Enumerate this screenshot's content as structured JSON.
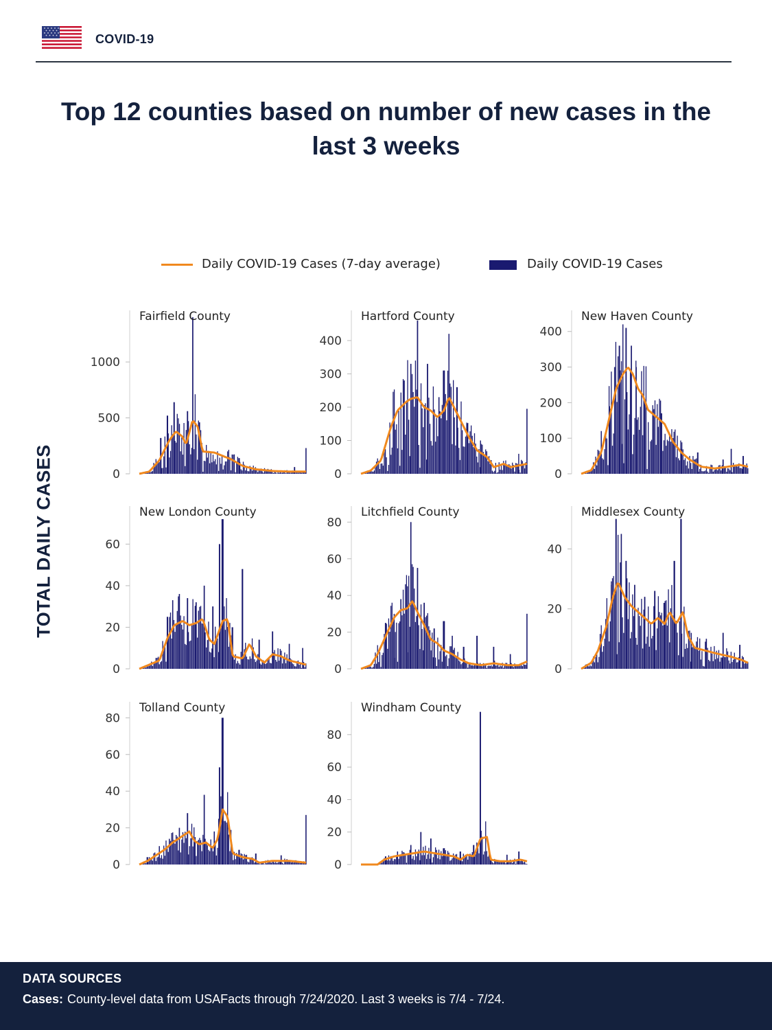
{
  "header": {
    "brand": "COVID-19",
    "title": "Top 12 counties based on number of new cases in the last 3 weeks"
  },
  "legend": {
    "line_label": "Daily COVID-19 Cases (7-day average)",
    "bar_label": "Daily COVID-19 Cases"
  },
  "y_axis_title": "TOTAL DAILY CASES",
  "colors": {
    "bar": "#1a1a70",
    "line": "#f0891e",
    "header_text": "#14213d",
    "footer_bg": "#14213d"
  },
  "footer": {
    "title": "DATA SOURCES",
    "label": "Cases:",
    "text": "County-level data from USAFacts through 7/24/2020. Last 3 weeks is 7/4 - 7/24."
  },
  "chart_data": [
    {
      "type": "bar",
      "title": "Fairfield County",
      "ymax": 1400,
      "yticks": [
        0,
        500,
        1000
      ],
      "peaks": [
        {
          "t": 0.13,
          "v": 320
        },
        {
          "t": 0.17,
          "v": 520
        },
        {
          "t": 0.21,
          "v": 640
        },
        {
          "t": 0.29,
          "v": 560
        },
        {
          "t": 0.32,
          "v": 1400
        },
        {
          "t": 0.36,
          "v": 460
        },
        {
          "t": 0.6,
          "v": 140
        },
        {
          "t": 0.93,
          "v": 60
        },
        {
          "t": 1.0,
          "v": 230
        }
      ],
      "avg_curve": [
        [
          0,
          0
        ],
        [
          0.06,
          20
        ],
        [
          0.12,
          120
        ],
        [
          0.18,
          300
        ],
        [
          0.22,
          380
        ],
        [
          0.26,
          330
        ],
        [
          0.28,
          260
        ],
        [
          0.32,
          480
        ],
        [
          0.35,
          420
        ],
        [
          0.38,
          200
        ],
        [
          0.45,
          190
        ],
        [
          0.55,
          130
        ],
        [
          0.62,
          70
        ],
        [
          0.7,
          40
        ],
        [
          0.8,
          25
        ],
        [
          0.9,
          20
        ],
        [
          1.0,
          20
        ]
      ]
    },
    {
      "type": "bar",
      "title": "Hartford County",
      "ymax": 470,
      "yticks": [
        0,
        100,
        200,
        300,
        400
      ],
      "peaks": [
        {
          "t": 0.2,
          "v": 170
        },
        {
          "t": 0.26,
          "v": 280
        },
        {
          "t": 0.3,
          "v": 330
        },
        {
          "t": 0.34,
          "v": 460
        },
        {
          "t": 0.4,
          "v": 330
        },
        {
          "t": 0.47,
          "v": 230
        },
        {
          "t": 0.5,
          "v": 310
        },
        {
          "t": 0.53,
          "v": 420
        },
        {
          "t": 0.58,
          "v": 260
        },
        {
          "t": 0.64,
          "v": 150
        },
        {
          "t": 0.72,
          "v": 100
        },
        {
          "t": 0.95,
          "v": 60
        },
        {
          "t": 1.0,
          "v": 195
        }
      ],
      "avg_curve": [
        [
          0,
          0
        ],
        [
          0.06,
          10
        ],
        [
          0.12,
          40
        ],
        [
          0.18,
          140
        ],
        [
          0.22,
          190
        ],
        [
          0.27,
          215
        ],
        [
          0.3,
          225
        ],
        [
          0.34,
          230
        ],
        [
          0.38,
          200
        ],
        [
          0.42,
          190
        ],
        [
          0.46,
          170
        ],
        [
          0.5,
          190
        ],
        [
          0.53,
          230
        ],
        [
          0.56,
          200
        ],
        [
          0.6,
          160
        ],
        [
          0.65,
          110
        ],
        [
          0.7,
          70
        ],
        [
          0.76,
          50
        ],
        [
          0.8,
          20
        ],
        [
          0.86,
          30
        ],
        [
          0.9,
          20
        ],
        [
          0.95,
          25
        ],
        [
          1.0,
          30
        ]
      ]
    },
    {
      "type": "bar",
      "title": "New Haven County",
      "ymax": 440,
      "yticks": [
        0,
        100,
        200,
        300,
        400
      ],
      "peaks": [
        {
          "t": 0.12,
          "v": 120
        },
        {
          "t": 0.17,
          "v": 190
        },
        {
          "t": 0.2,
          "v": 300
        },
        {
          "t": 0.23,
          "v": 360
        },
        {
          "t": 0.25,
          "v": 420
        },
        {
          "t": 0.27,
          "v": 410
        },
        {
          "t": 0.3,
          "v": 360
        },
        {
          "t": 0.33,
          "v": 300
        },
        {
          "t": 0.38,
          "v": 210
        },
        {
          "t": 0.43,
          "v": 180
        },
        {
          "t": 0.48,
          "v": 170
        },
        {
          "t": 0.55,
          "v": 100
        },
        {
          "t": 0.6,
          "v": 70
        },
        {
          "t": 0.7,
          "v": 60
        },
        {
          "t": 0.85,
          "v": 40
        },
        {
          "t": 0.9,
          "v": 70
        },
        {
          "t": 0.97,
          "v": 50
        }
      ],
      "avg_curve": [
        [
          0,
          0
        ],
        [
          0.06,
          10
        ],
        [
          0.12,
          60
        ],
        [
          0.17,
          160
        ],
        [
          0.21,
          240
        ],
        [
          0.25,
          280
        ],
        [
          0.28,
          300
        ],
        [
          0.31,
          280
        ],
        [
          0.34,
          240
        ],
        [
          0.37,
          220
        ],
        [
          0.4,
          180
        ],
        [
          0.45,
          160
        ],
        [
          0.5,
          140
        ],
        [
          0.55,
          90
        ],
        [
          0.6,
          60
        ],
        [
          0.65,
          40
        ],
        [
          0.72,
          20
        ],
        [
          0.8,
          15
        ],
        [
          0.88,
          20
        ],
        [
          0.95,
          25
        ],
        [
          1.0,
          20
        ]
      ]
    },
    {
      "type": "bar",
      "title": "New London County",
      "ymax": 75,
      "yticks": [
        0,
        20,
        40,
        60
      ],
      "peaks": [
        {
          "t": 0.17,
          "v": 25
        },
        {
          "t": 0.2,
          "v": 33
        },
        {
          "t": 0.24,
          "v": 36
        },
        {
          "t": 0.29,
          "v": 34
        },
        {
          "t": 0.34,
          "v": 32
        },
        {
          "t": 0.39,
          "v": 40
        },
        {
          "t": 0.44,
          "v": 30
        },
        {
          "t": 0.48,
          "v": 60
        },
        {
          "t": 0.5,
          "v": 72
        },
        {
          "t": 0.56,
          "v": 20
        },
        {
          "t": 0.62,
          "v": 48
        },
        {
          "t": 0.72,
          "v": 14
        },
        {
          "t": 0.8,
          "v": 18
        },
        {
          "t": 0.9,
          "v": 12
        },
        {
          "t": 0.98,
          "v": 10
        }
      ],
      "avg_curve": [
        [
          0,
          0
        ],
        [
          0.06,
          2
        ],
        [
          0.12,
          4
        ],
        [
          0.17,
          15
        ],
        [
          0.21,
          21
        ],
        [
          0.26,
          23
        ],
        [
          0.3,
          21
        ],
        [
          0.34,
          22
        ],
        [
          0.38,
          24
        ],
        [
          0.42,
          14
        ],
        [
          0.45,
          12
        ],
        [
          0.5,
          23
        ],
        [
          0.53,
          24
        ],
        [
          0.56,
          6
        ],
        [
          0.62,
          5
        ],
        [
          0.66,
          12
        ],
        [
          0.7,
          6
        ],
        [
          0.75,
          3
        ],
        [
          0.8,
          7
        ],
        [
          0.85,
          6
        ],
        [
          0.9,
          4
        ],
        [
          0.95,
          3
        ],
        [
          1.0,
          2
        ]
      ]
    },
    {
      "type": "bar",
      "title": "Litchfield County",
      "ymax": 85,
      "yticks": [
        0,
        20,
        40,
        60,
        80
      ],
      "peaks": [
        {
          "t": 0.1,
          "v": 8
        },
        {
          "t": 0.15,
          "v": 25
        },
        {
          "t": 0.2,
          "v": 30
        },
        {
          "t": 0.24,
          "v": 38
        },
        {
          "t": 0.28,
          "v": 45
        },
        {
          "t": 0.3,
          "v": 80
        },
        {
          "t": 0.34,
          "v": 55
        },
        {
          "t": 0.38,
          "v": 36
        },
        {
          "t": 0.44,
          "v": 22
        },
        {
          "t": 0.5,
          "v": 26
        },
        {
          "t": 0.55,
          "v": 18
        },
        {
          "t": 0.62,
          "v": 12
        },
        {
          "t": 0.7,
          "v": 18
        },
        {
          "t": 0.8,
          "v": 12
        },
        {
          "t": 0.9,
          "v": 8
        },
        {
          "t": 1.0,
          "v": 30
        }
      ],
      "avg_curve": [
        [
          0,
          0
        ],
        [
          0.06,
          2
        ],
        [
          0.1,
          8
        ],
        [
          0.15,
          18
        ],
        [
          0.2,
          28
        ],
        [
          0.24,
          32
        ],
        [
          0.28,
          33
        ],
        [
          0.31,
          37
        ],
        [
          0.34,
          31
        ],
        [
          0.38,
          24
        ],
        [
          0.42,
          16
        ],
        [
          0.46,
          14
        ],
        [
          0.5,
          10
        ],
        [
          0.55,
          8
        ],
        [
          0.6,
          5
        ],
        [
          0.65,
          3
        ],
        [
          0.72,
          2
        ],
        [
          0.8,
          3
        ],
        [
          0.88,
          2
        ],
        [
          0.95,
          2
        ],
        [
          1.0,
          4
        ]
      ]
    },
    {
      "type": "bar",
      "title": "Middlesex County",
      "ymax": 52,
      "yticks": [
        0,
        20,
        40
      ],
      "peaks": [
        {
          "t": 0.12,
          "v": 10
        },
        {
          "t": 0.18,
          "v": 28
        },
        {
          "t": 0.21,
          "v": 50
        },
        {
          "t": 0.24,
          "v": 45
        },
        {
          "t": 0.27,
          "v": 36
        },
        {
          "t": 0.32,
          "v": 28
        },
        {
          "t": 0.38,
          "v": 24
        },
        {
          "t": 0.44,
          "v": 26
        },
        {
          "t": 0.5,
          "v": 22
        },
        {
          "t": 0.56,
          "v": 36
        },
        {
          "t": 0.6,
          "v": 50
        },
        {
          "t": 0.66,
          "v": 12
        },
        {
          "t": 0.75,
          "v": 10
        },
        {
          "t": 0.85,
          "v": 12
        },
        {
          "t": 0.95,
          "v": 8
        }
      ],
      "avg_curve": [
        [
          0,
          0
        ],
        [
          0.06,
          2
        ],
        [
          0.1,
          6
        ],
        [
          0.15,
          14
        ],
        [
          0.19,
          24
        ],
        [
          0.22,
          29
        ],
        [
          0.26,
          24
        ],
        [
          0.3,
          21
        ],
        [
          0.34,
          19
        ],
        [
          0.38,
          17
        ],
        [
          0.42,
          15
        ],
        [
          0.46,
          17
        ],
        [
          0.5,
          15
        ],
        [
          0.53,
          19
        ],
        [
          0.57,
          15
        ],
        [
          0.61,
          19
        ],
        [
          0.64,
          11
        ],
        [
          0.68,
          7
        ],
        [
          0.75,
          6
        ],
        [
          0.82,
          5
        ],
        [
          0.9,
          4
        ],
        [
          0.96,
          3
        ],
        [
          1.0,
          2
        ]
      ]
    },
    {
      "type": "bar",
      "title": "Tolland County",
      "ymax": 85,
      "yticks": [
        0,
        20,
        40,
        60,
        80
      ],
      "peaks": [
        {
          "t": 0.05,
          "v": 4
        },
        {
          "t": 0.12,
          "v": 10
        },
        {
          "t": 0.18,
          "v": 14
        },
        {
          "t": 0.24,
          "v": 20
        },
        {
          "t": 0.29,
          "v": 28
        },
        {
          "t": 0.33,
          "v": 14
        },
        {
          "t": 0.39,
          "v": 38
        },
        {
          "t": 0.45,
          "v": 18
        },
        {
          "t": 0.48,
          "v": 53
        },
        {
          "t": 0.5,
          "v": 80
        },
        {
          "t": 0.53,
          "v": 20
        },
        {
          "t": 0.6,
          "v": 8
        },
        {
          "t": 0.7,
          "v": 6
        },
        {
          "t": 0.85,
          "v": 5
        },
        {
          "t": 1.0,
          "v": 27
        }
      ],
      "avg_curve": [
        [
          0,
          0
        ],
        [
          0.05,
          2
        ],
        [
          0.1,
          5
        ],
        [
          0.15,
          8
        ],
        [
          0.2,
          12
        ],
        [
          0.25,
          15
        ],
        [
          0.3,
          18
        ],
        [
          0.33,
          13
        ],
        [
          0.36,
          11
        ],
        [
          0.4,
          12
        ],
        [
          0.44,
          9
        ],
        [
          0.47,
          14
        ],
        [
          0.5,
          30
        ],
        [
          0.53,
          26
        ],
        [
          0.56,
          6
        ],
        [
          0.62,
          4
        ],
        [
          0.68,
          3
        ],
        [
          0.72,
          1
        ],
        [
          0.8,
          2
        ],
        [
          0.9,
          2
        ],
        [
          1.0,
          1
        ]
      ]
    },
    {
      "type": "bar",
      "title": "Windham County",
      "ymax": 96,
      "yticks": [
        0,
        20,
        40,
        60,
        80
      ],
      "peaks": [
        {
          "t": 0.15,
          "v": 5
        },
        {
          "t": 0.22,
          "v": 8
        },
        {
          "t": 0.3,
          "v": 12
        },
        {
          "t": 0.36,
          "v": 20
        },
        {
          "t": 0.42,
          "v": 16
        },
        {
          "t": 0.5,
          "v": 10
        },
        {
          "t": 0.6,
          "v": 8
        },
        {
          "t": 0.68,
          "v": 12
        },
        {
          "t": 0.72,
          "v": 94
        },
        {
          "t": 0.78,
          "v": 6
        },
        {
          "t": 0.88,
          "v": 6
        },
        {
          "t": 0.95,
          "v": 8
        }
      ],
      "avg_curve": [
        [
          0,
          0
        ],
        [
          0.1,
          0
        ],
        [
          0.14,
          3
        ],
        [
          0.2,
          5
        ],
        [
          0.26,
          6
        ],
        [
          0.32,
          7
        ],
        [
          0.38,
          8
        ],
        [
          0.44,
          7
        ],
        [
          0.5,
          6
        ],
        [
          0.56,
          5
        ],
        [
          0.6,
          3
        ],
        [
          0.64,
          6
        ],
        [
          0.68,
          5
        ],
        [
          0.72,
          16
        ],
        [
          0.76,
          17
        ],
        [
          0.78,
          3
        ],
        [
          0.84,
          2
        ],
        [
          0.9,
          2
        ],
        [
          0.96,
          3
        ],
        [
          1.0,
          2
        ]
      ]
    }
  ]
}
